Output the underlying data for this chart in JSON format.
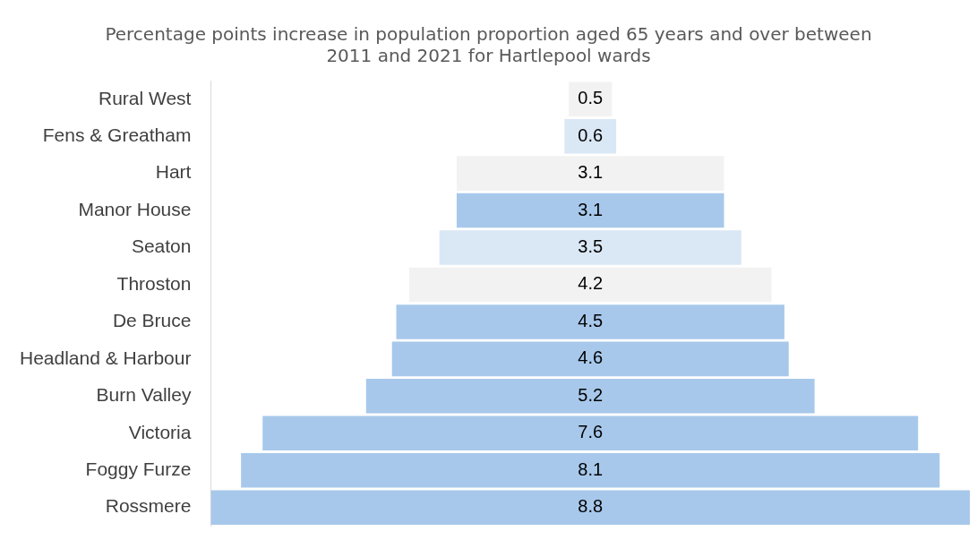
{
  "chart_data": {
    "type": "other",
    "title": "Percentage points increase in population proportion aged 65 years and over between 2011 and 2021 for Hartlepool wards",
    "categories": [
      "Rural West",
      "Fens & Greatham",
      "Hart",
      "Manor House",
      "Seaton",
      "Throston",
      "De Bruce",
      "Headland & Harbour",
      "Burn Valley",
      "Victoria",
      "Foggy Furze",
      "Rossmere"
    ],
    "values": [
      0.5,
      0.6,
      3.1,
      3.1,
      3.5,
      4.2,
      4.5,
      4.6,
      5.2,
      7.6,
      8.1,
      8.8
    ],
    "colors": [
      "#f2f2f2",
      "#dae7f5",
      "#f2f2f2",
      "#a7c8eb",
      "#dae7f5",
      "#f2f2f2",
      "#a7c8eb",
      "#a7c8eb",
      "#a7c8eb",
      "#a7c8eb",
      "#a7c8eb",
      "#a7c8eb"
    ],
    "data_labels": true
  }
}
